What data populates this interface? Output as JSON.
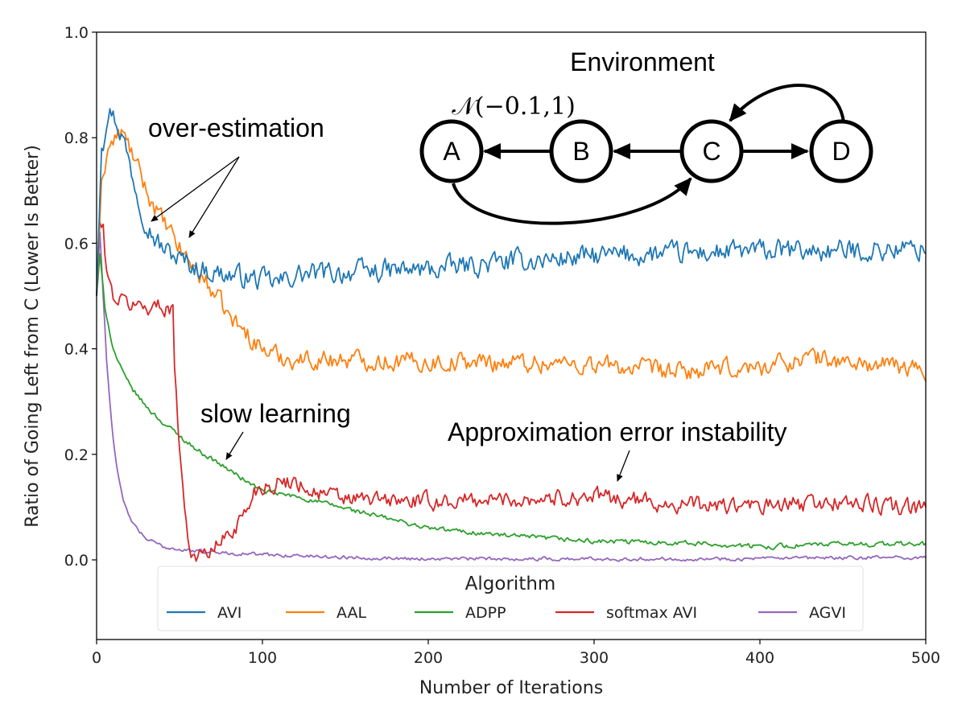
{
  "chart_data": {
    "type": "line",
    "xlabel": "Number of Iterations",
    "ylabel": "Ratio of Going Left from C (Lower Is Better)",
    "xlim": [
      0,
      500
    ],
    "ylim": [
      -0.15,
      1.0
    ],
    "x_ticks": [
      "0",
      "100",
      "200",
      "300",
      "400",
      "500"
    ],
    "y_ticks": [
      "0.0",
      "0.2",
      "0.4",
      "0.6",
      "0.8",
      "1.0"
    ],
    "grid": false,
    "legend": {
      "title": "Algorithm",
      "placement": "bottom-center",
      "ncol": 5
    },
    "series": [
      {
        "name": "AVI",
        "color": "#1f77b4",
        "noise": 0.018,
        "x": [
          0,
          3,
          6,
          9,
          12,
          16,
          20,
          25,
          30,
          35,
          40,
          50,
          60,
          70,
          80,
          90,
          100,
          110,
          120,
          150,
          200,
          250,
          300,
          350,
          400,
          450,
          500
        ],
        "values": [
          0.5,
          0.78,
          0.84,
          0.85,
          0.83,
          0.8,
          0.75,
          0.69,
          0.64,
          0.61,
          0.59,
          0.57,
          0.555,
          0.545,
          0.54,
          0.535,
          0.53,
          0.525,
          0.54,
          0.545,
          0.55,
          0.565,
          0.575,
          0.58,
          0.585,
          0.585,
          0.59
        ]
      },
      {
        "name": "AAL",
        "color": "#ff7f0e",
        "noise": 0.016,
        "x": [
          0,
          3,
          7,
          12,
          15,
          20,
          25,
          30,
          35,
          40,
          50,
          60,
          70,
          80,
          90,
          100,
          110,
          120,
          150,
          200,
          250,
          300,
          350,
          400,
          430,
          450,
          500
        ],
        "values": [
          0.5,
          0.72,
          0.78,
          0.8,
          0.81,
          0.78,
          0.74,
          0.7,
          0.67,
          0.64,
          0.59,
          0.55,
          0.51,
          0.46,
          0.43,
          0.4,
          0.385,
          0.38,
          0.38,
          0.375,
          0.375,
          0.37,
          0.355,
          0.365,
          0.385,
          0.375,
          0.36
        ]
      },
      {
        "name": "ADPP",
        "color": "#2ca02c",
        "noise": 0.004,
        "x": [
          0,
          2,
          5,
          10,
          15,
          20,
          30,
          40,
          50,
          60,
          70,
          80,
          90,
          100,
          120,
          140,
          160,
          180,
          200,
          250,
          300,
          350,
          400,
          450,
          500
        ],
        "values": [
          0.5,
          0.58,
          0.48,
          0.4,
          0.36,
          0.33,
          0.29,
          0.26,
          0.235,
          0.21,
          0.19,
          0.17,
          0.15,
          0.13,
          0.12,
          0.105,
          0.09,
          0.075,
          0.06,
          0.045,
          0.035,
          0.033,
          0.025,
          0.03,
          0.03
        ]
      },
      {
        "name": "softmax AVI",
        "color": "#d62728",
        "noise": 0.014,
        "x": [
          0,
          2,
          4,
          6,
          8,
          10,
          15,
          20,
          30,
          40,
          46,
          47,
          48,
          50,
          53,
          56,
          58,
          60,
          65,
          70,
          75,
          80,
          85,
          90,
          95,
          100,
          110,
          120,
          130,
          150,
          200,
          250,
          300,
          350,
          400,
          450,
          500
        ],
        "values": [
          0.5,
          0.64,
          0.62,
          0.55,
          0.52,
          0.5,
          0.49,
          0.485,
          0.48,
          0.48,
          0.48,
          0.35,
          0.32,
          0.22,
          0.1,
          0.03,
          0.01,
          0.005,
          0.01,
          0.02,
          0.035,
          0.05,
          0.07,
          0.09,
          0.13,
          0.14,
          0.145,
          0.15,
          0.13,
          0.115,
          0.11,
          0.115,
          0.12,
          0.105,
          0.1,
          0.11,
          0.095
        ]
      },
      {
        "name": "AGVI",
        "color": "#9467bd",
        "noise": 0.003,
        "x": [
          0,
          2,
          4,
          6,
          8,
          10,
          13,
          16,
          20,
          25,
          30,
          40,
          50,
          60,
          70,
          80,
          100,
          150,
          200,
          300,
          400,
          500
        ],
        "values": [
          0.5,
          0.62,
          0.5,
          0.38,
          0.3,
          0.23,
          0.16,
          0.11,
          0.08,
          0.055,
          0.04,
          0.025,
          0.02,
          0.016,
          0.015,
          0.013,
          0.01,
          0.005,
          0.002,
          0.002,
          0.002,
          0.005
        ]
      }
    ],
    "annotations": {
      "over_estimation": "over-estimation",
      "slow_learning": "slow learning",
      "instability": "Approximation error instability"
    },
    "environment": {
      "title": "Environment",
      "nodes": [
        "A",
        "B",
        "C",
        "D"
      ],
      "reward_label": "𝒩(−0.1,1)"
    }
  }
}
